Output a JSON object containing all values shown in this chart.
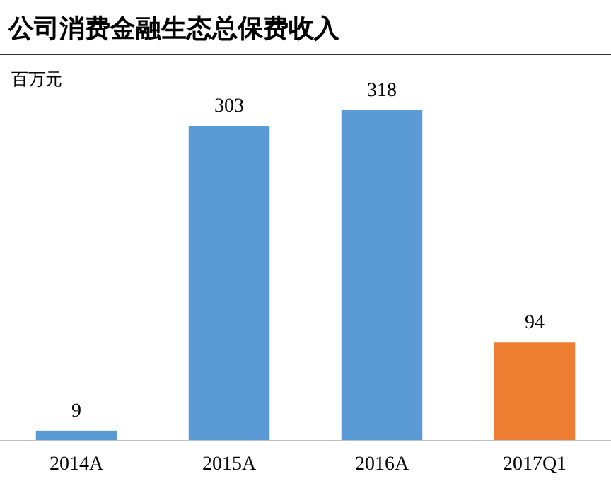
{
  "chart_data": {
    "type": "bar",
    "title": "公司消费金融生态总保费收入",
    "ylabel": "百万元",
    "categories": [
      "2014A",
      "2015A",
      "2016A",
      "2017Q1"
    ],
    "values": [
      9,
      303,
      318,
      94
    ],
    "colors": [
      "#5b9bd5",
      "#5b9bd5",
      "#5b9bd5",
      "#ed7d31"
    ],
    "data_labels": true
  }
}
